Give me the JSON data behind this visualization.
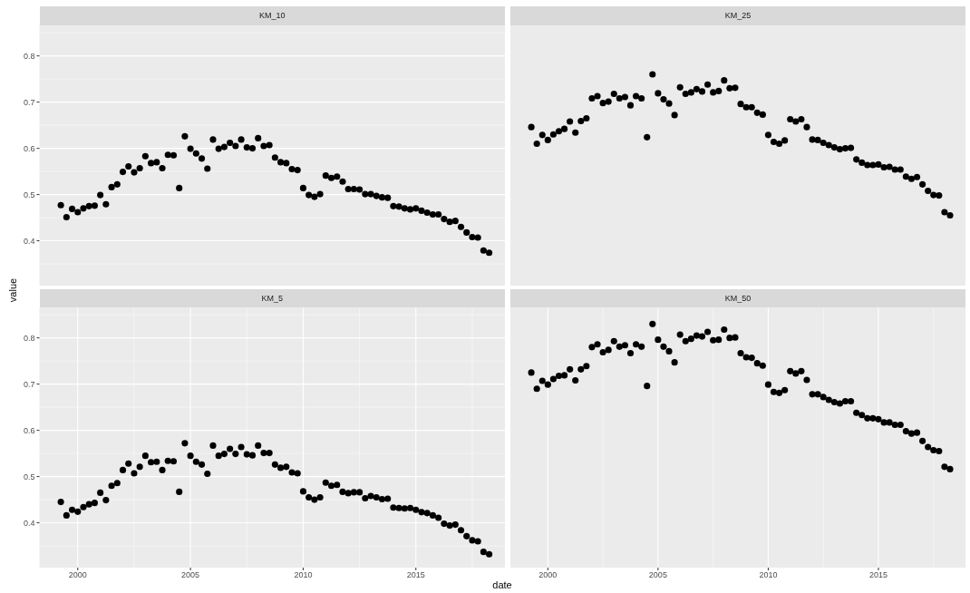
{
  "chart_data": [
    {
      "type": "scatter",
      "title": "KM_10",
      "ylabel": "value",
      "tick_labels": "y",
      "grid": true,
      "marker": "circle",
      "color": "#000000",
      "xlim": [
        1998.3,
        2018.95
      ],
      "ylim": [
        0.303,
        0.866
      ],
      "xticks": [
        2000,
        2005,
        2010,
        2015
      ],
      "yticks": [
        0.4,
        0.5,
        0.6,
        0.7,
        0.8
      ],
      "x": [
        1999.25,
        1999.5,
        1999.75,
        2000,
        2000.25,
        2000.5,
        2000.75,
        2001,
        2001.25,
        2001.5,
        2001.75,
        2002,
        2002.25,
        2002.5,
        2002.75,
        2003,
        2003.25,
        2003.5,
        2003.75,
        2004,
        2004.25,
        2004.5,
        2004.75,
        2005,
        2005.25,
        2005.5,
        2005.75,
        2006,
        2006.25,
        2006.5,
        2006.75,
        2007,
        2007.25,
        2007.5,
        2007.75,
        2008,
        2008.25,
        2008.5,
        2008.75,
        2009,
        2009.25,
        2009.5,
        2009.75,
        2010,
        2010.25,
        2010.5,
        2010.75,
        2011,
        2011.25,
        2011.5,
        2011.75,
        2012,
        2012.25,
        2012.5,
        2012.75,
        2013,
        2013.25,
        2013.5,
        2013.75,
        2014,
        2014.25,
        2014.5,
        2014.75,
        2015,
        2015.25,
        2015.5,
        2015.75,
        2016,
        2016.25,
        2016.5,
        2016.75,
        2017,
        2017.25,
        2017.5,
        2017.75,
        2018,
        2018.25
      ],
      "values": [
        0.477,
        0.451,
        0.469,
        0.462,
        0.47,
        0.475,
        0.476,
        0.499,
        0.479,
        0.516,
        0.522,
        0.549,
        0.561,
        0.548,
        0.557,
        0.583,
        0.568,
        0.57,
        0.557,
        0.586,
        0.585,
        0.514,
        0.626,
        0.599,
        0.589,
        0.578,
        0.556,
        0.619,
        0.599,
        0.603,
        0.612,
        0.605,
        0.619,
        0.602,
        0.6,
        0.622,
        0.605,
        0.607,
        0.58,
        0.57,
        0.568,
        0.555,
        0.553,
        0.514,
        0.499,
        0.495,
        0.501,
        0.541,
        0.536,
        0.539,
        0.528,
        0.512,
        0.512,
        0.511,
        0.501,
        0.501,
        0.497,
        0.494,
        0.493,
        0.475,
        0.474,
        0.47,
        0.468,
        0.47,
        0.465,
        0.461,
        0.457,
        0.457,
        0.447,
        0.441,
        0.443,
        0.43,
        0.418,
        0.408,
        0.407,
        0.379,
        0.374
      ]
    },
    {
      "type": "scatter",
      "title": "KM_25",
      "tick_labels": false,
      "grid": true,
      "marker": "circle",
      "color": "#000000",
      "xlim": [
        1998.3,
        2018.95
      ],
      "ylim": [
        0.303,
        0.866
      ],
      "xticks": [
        2000,
        2005,
        2010,
        2015
      ],
      "yticks": [
        0.4,
        0.5,
        0.6,
        0.7,
        0.8
      ],
      "x": [
        1999.25,
        1999.5,
        1999.75,
        2000,
        2000.25,
        2000.5,
        2000.75,
        2001,
        2001.25,
        2001.5,
        2001.75,
        2002,
        2002.25,
        2002.5,
        2002.75,
        2003,
        2003.25,
        2003.5,
        2003.75,
        2004,
        2004.25,
        2004.5,
        2004.75,
        2005,
        2005.25,
        2005.5,
        2005.75,
        2006,
        2006.25,
        2006.5,
        2006.75,
        2007,
        2007.25,
        2007.5,
        2007.75,
        2008,
        2008.25,
        2008.5,
        2008.75,
        2009,
        2009.25,
        2009.5,
        2009.75,
        2010,
        2010.25,
        2010.5,
        2010.75,
        2011,
        2011.25,
        2011.5,
        2011.75,
        2012,
        2012.25,
        2012.5,
        2012.75,
        2013,
        2013.25,
        2013.5,
        2013.75,
        2014,
        2014.25,
        2014.5,
        2014.75,
        2015,
        2015.25,
        2015.5,
        2015.75,
        2016,
        2016.25,
        2016.5,
        2016.75,
        2017,
        2017.25,
        2017.5,
        2017.75,
        2018,
        2018.25
      ],
      "values": [
        0.646,
        0.61,
        0.629,
        0.618,
        0.63,
        0.637,
        0.642,
        0.658,
        0.634,
        0.659,
        0.665,
        0.708,
        0.713,
        0.698,
        0.701,
        0.718,
        0.708,
        0.711,
        0.693,
        0.713,
        0.708,
        0.624,
        0.76,
        0.719,
        0.706,
        0.697,
        0.672,
        0.732,
        0.718,
        0.721,
        0.728,
        0.723,
        0.738,
        0.721,
        0.724,
        0.747,
        0.73,
        0.731,
        0.696,
        0.689,
        0.689,
        0.677,
        0.673,
        0.629,
        0.614,
        0.61,
        0.617,
        0.663,
        0.658,
        0.663,
        0.646,
        0.619,
        0.618,
        0.612,
        0.607,
        0.602,
        0.598,
        0.6,
        0.601,
        0.576,
        0.569,
        0.564,
        0.564,
        0.565,
        0.559,
        0.56,
        0.554,
        0.554,
        0.539,
        0.534,
        0.538,
        0.522,
        0.508,
        0.499,
        0.498,
        0.462,
        0.455
      ]
    },
    {
      "type": "scatter",
      "title": "KM_5",
      "xlabel": "date",
      "grid": true,
      "marker": "circle",
      "color": "#000000",
      "xlim": [
        1998.3,
        2018.95
      ],
      "ylim": [
        0.303,
        0.866
      ],
      "xticks": [
        2000,
        2005,
        2010,
        2015
      ],
      "yticks": [
        0.4,
        0.5,
        0.6,
        0.7,
        0.8
      ],
      "x": [
        1999.25,
        1999.5,
        1999.75,
        2000,
        2000.25,
        2000.5,
        2000.75,
        2001,
        2001.25,
        2001.5,
        2001.75,
        2002,
        2002.25,
        2002.5,
        2002.75,
        2003,
        2003.25,
        2003.5,
        2003.75,
        2004,
        2004.25,
        2004.5,
        2004.75,
        2005,
        2005.25,
        2005.5,
        2005.75,
        2006,
        2006.25,
        2006.5,
        2006.75,
        2007,
        2007.25,
        2007.5,
        2007.75,
        2008,
        2008.25,
        2008.5,
        2008.75,
        2009,
        2009.25,
        2009.5,
        2009.75,
        2010,
        2010.25,
        2010.5,
        2010.75,
        2011,
        2011.25,
        2011.5,
        2011.75,
        2012,
        2012.25,
        2012.5,
        2012.75,
        2013,
        2013.25,
        2013.5,
        2013.75,
        2014,
        2014.25,
        2014.5,
        2014.75,
        2015,
        2015.25,
        2015.5,
        2015.75,
        2016,
        2016.25,
        2016.5,
        2016.75,
        2017,
        2017.25,
        2017.5,
        2017.75,
        2018,
        2018.25
      ],
      "values": [
        0.445,
        0.416,
        0.428,
        0.424,
        0.434,
        0.44,
        0.443,
        0.465,
        0.449,
        0.48,
        0.486,
        0.514,
        0.528,
        0.507,
        0.521,
        0.545,
        0.531,
        0.532,
        0.514,
        0.534,
        0.533,
        0.467,
        0.572,
        0.545,
        0.532,
        0.526,
        0.506,
        0.567,
        0.545,
        0.549,
        0.56,
        0.549,
        0.564,
        0.548,
        0.546,
        0.567,
        0.551,
        0.551,
        0.526,
        0.519,
        0.521,
        0.509,
        0.507,
        0.468,
        0.455,
        0.45,
        0.455,
        0.487,
        0.48,
        0.482,
        0.467,
        0.464,
        0.466,
        0.466,
        0.453,
        0.458,
        0.455,
        0.451,
        0.452,
        0.433,
        0.432,
        0.431,
        0.432,
        0.428,
        0.423,
        0.421,
        0.416,
        0.411,
        0.398,
        0.394,
        0.396,
        0.384,
        0.371,
        0.362,
        0.36,
        0.337,
        0.332
      ]
    },
    {
      "type": "scatter",
      "title": "KM_50",
      "tick_labels": "x",
      "grid": true,
      "marker": "circle",
      "color": "#000000",
      "xlim": [
        1998.3,
        2018.95
      ],
      "ylim": [
        0.303,
        0.866
      ],
      "xticks": [
        2000,
        2005,
        2010,
        2015
      ],
      "yticks": [
        0.4,
        0.5,
        0.6,
        0.7,
        0.8
      ],
      "x": [
        1999.25,
        1999.5,
        1999.75,
        2000,
        2000.25,
        2000.5,
        2000.75,
        2001,
        2001.25,
        2001.5,
        2001.75,
        2002,
        2002.25,
        2002.5,
        2002.75,
        2003,
        2003.25,
        2003.5,
        2003.75,
        2004,
        2004.25,
        2004.5,
        2004.75,
        2005,
        2005.25,
        2005.5,
        2005.75,
        2006,
        2006.25,
        2006.5,
        2006.75,
        2007,
        2007.25,
        2007.5,
        2007.75,
        2008,
        2008.25,
        2008.5,
        2008.75,
        2009,
        2009.25,
        2009.5,
        2009.75,
        2010,
        2010.25,
        2010.5,
        2010.75,
        2011,
        2011.25,
        2011.5,
        2011.75,
        2012,
        2012.25,
        2012.5,
        2012.75,
        2013,
        2013.25,
        2013.5,
        2013.75,
        2014,
        2014.25,
        2014.5,
        2014.75,
        2015,
        2015.25,
        2015.5,
        2015.75,
        2016,
        2016.25,
        2016.5,
        2016.75,
        2017,
        2017.25,
        2017.5,
        2017.75,
        2018,
        2018.25
      ],
      "values": [
        0.725,
        0.69,
        0.707,
        0.699,
        0.711,
        0.718,
        0.719,
        0.732,
        0.708,
        0.732,
        0.739,
        0.78,
        0.786,
        0.769,
        0.774,
        0.793,
        0.781,
        0.784,
        0.767,
        0.786,
        0.781,
        0.696,
        0.83,
        0.796,
        0.781,
        0.771,
        0.747,
        0.807,
        0.793,
        0.798,
        0.805,
        0.803,
        0.813,
        0.795,
        0.796,
        0.818,
        0.8,
        0.801,
        0.767,
        0.758,
        0.757,
        0.745,
        0.74,
        0.699,
        0.683,
        0.681,
        0.687,
        0.728,
        0.723,
        0.728,
        0.709,
        0.678,
        0.678,
        0.672,
        0.666,
        0.661,
        0.658,
        0.663,
        0.663,
        0.638,
        0.633,
        0.626,
        0.626,
        0.624,
        0.617,
        0.617,
        0.612,
        0.612,
        0.598,
        0.593,
        0.595,
        0.577,
        0.564,
        0.557,
        0.555,
        0.521,
        0.516
      ]
    }
  ]
}
